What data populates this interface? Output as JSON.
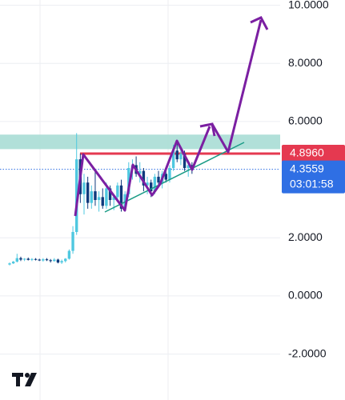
{
  "chart_data": {
    "type": "candlestick",
    "ylim": [
      -3.58,
      10.18
    ],
    "yticks": [
      {
        "value": 10,
        "label": "10.0000"
      },
      {
        "value": 8,
        "label": "8.0000"
      },
      {
        "value": 6,
        "label": "6.0000"
      },
      {
        "value": 2,
        "label": "2.0000"
      },
      {
        "value": 0,
        "label": "0.0000"
      },
      {
        "value": -2,
        "label": "-2.0000"
      }
    ],
    "grid": true,
    "up_color": "#4fc8e0",
    "down_color": "#0f3a7c",
    "zone": {
      "low": 5.05,
      "high": 5.55,
      "color": "#a8ddd5"
    },
    "resistance": {
      "value": 4.896,
      "label": "4.8960",
      "color": "#e53950"
    },
    "current_price": 4.3559,
    "current_color": "#2f6fe4",
    "countdown": "03:01:58",
    "candles": [
      {
        "open": 1.08,
        "high": 1.15,
        "low": 1.05,
        "close": 1.12
      },
      {
        "open": 1.12,
        "high": 1.2,
        "low": 1.1,
        "close": 1.18
      },
      {
        "open": 1.18,
        "high": 1.45,
        "low": 1.15,
        "close": 1.3
      },
      {
        "open": 1.3,
        "high": 1.35,
        "low": 1.2,
        "close": 1.25
      },
      {
        "open": 1.25,
        "high": 1.3,
        "low": 1.2,
        "close": 1.28
      },
      {
        "open": 1.28,
        "high": 1.32,
        "low": 1.22,
        "close": 1.24
      },
      {
        "open": 1.24,
        "high": 1.3,
        "low": 1.2,
        "close": 1.27
      },
      {
        "open": 1.27,
        "high": 1.3,
        "low": 1.22,
        "close": 1.25
      },
      {
        "open": 1.25,
        "high": 1.28,
        "low": 1.2,
        "close": 1.22
      },
      {
        "open": 1.22,
        "high": 1.3,
        "low": 1.18,
        "close": 1.26
      },
      {
        "open": 1.26,
        "high": 1.3,
        "low": 1.2,
        "close": 1.23
      },
      {
        "open": 1.23,
        "high": 1.27,
        "low": 1.15,
        "close": 1.2
      },
      {
        "open": 1.2,
        "high": 1.3,
        "low": 1.18,
        "close": 1.25
      },
      {
        "open": 1.25,
        "high": 1.28,
        "low": 1.12,
        "close": 1.15
      },
      {
        "open": 1.15,
        "high": 1.25,
        "low": 1.1,
        "close": 1.2
      },
      {
        "open": 1.2,
        "high": 1.3,
        "low": 1.15,
        "close": 1.28
      },
      {
        "open": 1.28,
        "high": 1.6,
        "low": 1.25,
        "close": 1.55
      },
      {
        "open": 1.55,
        "high": 2.4,
        "low": 1.45,
        "close": 2.2
      },
      {
        "open": 2.2,
        "high": 5.6,
        "low": 2.1,
        "close": 4.7
      },
      {
        "open": 4.7,
        "high": 4.9,
        "low": 3.2,
        "close": 3.5
      },
      {
        "open": 3.5,
        "high": 4.2,
        "low": 2.8,
        "close": 3.9
      },
      {
        "open": 3.9,
        "high": 4.1,
        "low": 3.0,
        "close": 3.2
      },
      {
        "open": 3.2,
        "high": 3.8,
        "low": 3.0,
        "close": 3.6
      },
      {
        "open": 3.6,
        "high": 4.3,
        "low": 3.1,
        "close": 3.3
      },
      {
        "open": 3.3,
        "high": 3.6,
        "low": 2.9,
        "close": 3.4
      },
      {
        "open": 3.4,
        "high": 3.7,
        "low": 3.0,
        "close": 3.1
      },
      {
        "open": 3.1,
        "high": 3.9,
        "low": 3.0,
        "close": 3.7
      },
      {
        "open": 3.7,
        "high": 3.8,
        "low": 3.1,
        "close": 3.3
      },
      {
        "open": 3.3,
        "high": 3.5,
        "low": 2.95,
        "close": 3.4
      },
      {
        "open": 3.4,
        "high": 3.9,
        "low": 3.3,
        "close": 3.8
      },
      {
        "open": 3.8,
        "high": 4.0,
        "low": 2.9,
        "close": 3.0
      },
      {
        "open": 3.0,
        "high": 3.6,
        "low": 2.9,
        "close": 3.5
      },
      {
        "open": 3.5,
        "high": 4.6,
        "low": 3.4,
        "close": 4.4
      },
      {
        "open": 4.4,
        "high": 4.7,
        "low": 4.0,
        "close": 4.5
      },
      {
        "open": 4.5,
        "high": 4.8,
        "low": 4.1,
        "close": 4.2
      },
      {
        "open": 4.2,
        "high": 4.6,
        "low": 3.9,
        "close": 4.3
      },
      {
        "open": 4.3,
        "high": 4.4,
        "low": 3.6,
        "close": 3.8
      },
      {
        "open": 3.8,
        "high": 4.1,
        "low": 3.5,
        "close": 3.9
      },
      {
        "open": 3.9,
        "high": 4.0,
        "low": 3.4,
        "close": 3.6
      },
      {
        "open": 3.6,
        "high": 4.2,
        "low": 3.5,
        "close": 4.1
      },
      {
        "open": 4.1,
        "high": 4.3,
        "low": 3.8,
        "close": 3.9
      },
      {
        "open": 3.9,
        "high": 4.3,
        "low": 3.7,
        "close": 4.2
      },
      {
        "open": 4.2,
        "high": 4.4,
        "low": 3.9,
        "close": 4.0
      },
      {
        "open": 4.0,
        "high": 4.5,
        "low": 3.9,
        "close": 4.4
      },
      {
        "open": 4.4,
        "high": 5.2,
        "low": 4.3,
        "close": 5.0
      },
      {
        "open": 5.0,
        "high": 5.3,
        "low": 4.6,
        "close": 4.7
      },
      {
        "open": 4.7,
        "high": 5.1,
        "low": 4.5,
        "close": 4.9
      },
      {
        "open": 4.9,
        "high": 5.0,
        "low": 4.3,
        "close": 4.4
      },
      {
        "open": 4.4,
        "high": 4.6,
        "low": 4.1,
        "close": 4.5
      },
      {
        "open": 4.5,
        "high": 4.6,
        "low": 4.2,
        "close": 4.3559
      }
    ]
  }
}
